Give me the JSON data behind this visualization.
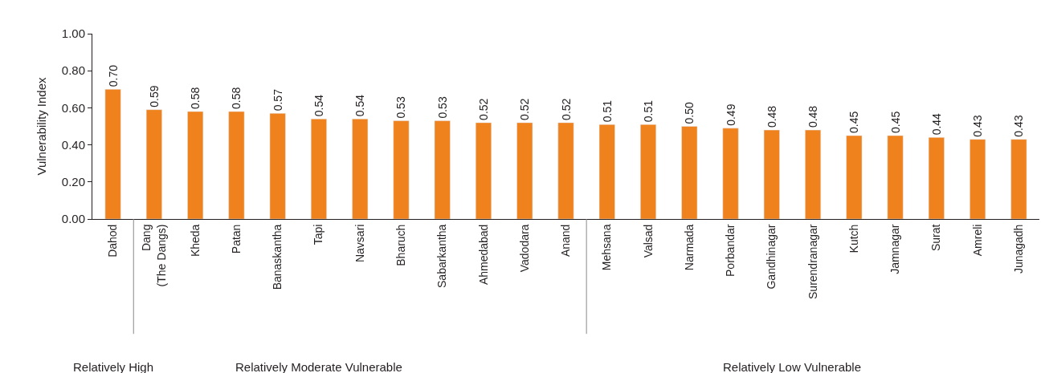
{
  "chart_data": {
    "type": "bar",
    "ylabel": "Vulnerability Index",
    "categories": [
      "Dahod",
      "Dang\n(The Dangs)",
      "Kheda",
      "Patan",
      "Banaskantha",
      "Tapi",
      "Navsari",
      "Bharuch",
      "Sabarkantha",
      "Ahmedabad",
      "Vadodara",
      "Anand",
      "Mehsana",
      "Valsad",
      "Narmada",
      "Porbandar",
      "Gandhinagar",
      "Surendranagar",
      "Kutch",
      "Jamnagar",
      "Surat",
      "Amreli",
      "Junagadh"
    ],
    "values": [
      0.7,
      0.59,
      0.58,
      0.58,
      0.57,
      0.54,
      0.54,
      0.53,
      0.53,
      0.52,
      0.52,
      0.52,
      0.51,
      0.51,
      0.5,
      0.49,
      0.48,
      0.48,
      0.45,
      0.45,
      0.44,
      0.43,
      0.43
    ],
    "value_labels": [
      "0.70",
      "0.59",
      "0.58",
      "0.58",
      "0.57",
      "0.54",
      "0.54",
      "0.53",
      "0.53",
      "0.52",
      "0.52",
      "0.52",
      "0.51",
      "0.51",
      "0.50",
      "0.49",
      "0.48",
      "0.48",
      "0.45",
      "0.45",
      "0.44",
      "0.43",
      "0.43"
    ],
    "color": "#f0821e",
    "ylim": [
      0,
      1
    ],
    "yticks": [
      {
        "value": 0,
        "label": "0.00"
      },
      {
        "value": 0.2,
        "label": "0.20"
      },
      {
        "value": 0.4,
        "label": "0.40"
      },
      {
        "value": 0.6,
        "label": "0.60"
      },
      {
        "value": 0.8,
        "label": "0.80"
      },
      {
        "value": 1,
        "label": "1.00"
      }
    ],
    "annotations": [
      "Relatively High",
      "Relatively Moderate Vulnerable",
      "Relatively Low Vulnerable"
    ],
    "legend": false
  }
}
